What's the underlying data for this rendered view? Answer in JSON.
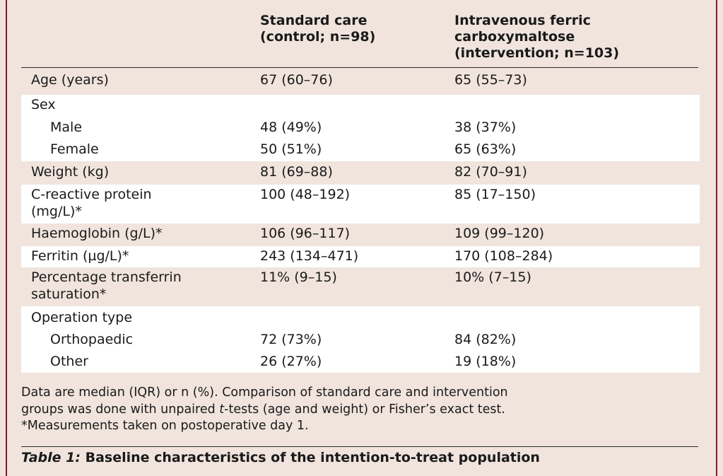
{
  "table": {
    "header": {
      "col1": [
        "Standard care",
        "(control; n=98)"
      ],
      "col2": [
        "Intravenous ferric",
        "carboxymaltose",
        "(intervention; n=103)"
      ]
    },
    "rows": {
      "age": {
        "label": "Age (years)",
        "control": "67 (60–76)",
        "intervention": "65 (55–73)"
      },
      "sex": {
        "label": "Sex"
      },
      "male": {
        "label": "Male",
        "control": "48 (49%)",
        "intervention": "38 (37%)"
      },
      "female": {
        "label": "Female",
        "control": "50 (51%)",
        "intervention": "65 (63%)"
      },
      "weight": {
        "label": "Weight (kg)",
        "control": "81 (69–88)",
        "intervention": "82 (70–91)"
      },
      "crp": {
        "label1": "C-reactive protein",
        "label2": "(mg/L)*",
        "control": "100 (48–192)",
        "intervention": "85 (17–150)"
      },
      "hb": {
        "label": "Haemoglobin (g/L)*",
        "control": "106 (96–117)",
        "intervention": "109 (99–120)"
      },
      "ferritin": {
        "label": "Ferritin (µg/L)*",
        "control": "243 (134–471)",
        "intervention": "170 (108–284)"
      },
      "tsat": {
        "label1": "Percentage transferrin",
        "label2": "saturation*",
        "control": "11% (9–15)",
        "intervention": "10% (7–15)"
      },
      "optype": {
        "label": "Operation type"
      },
      "ortho": {
        "label": "Orthopaedic",
        "control": "72 (73%)",
        "intervention": "84 (82%)"
      },
      "other": {
        "label": "Other",
        "control": "26 (27%)",
        "intervention": "19 (18%)"
      }
    }
  },
  "footnote": {
    "line1": "Data are median (IQR) or n (%). Comparison of standard care and intervention",
    "line2_pre": "groups was done with unpaired ",
    "line2_t": "t",
    "line2_post": "-tests (age and weight) or Fisher’s exact test.",
    "line3": "*Measurements taken on postoperative day 1."
  },
  "caption": {
    "label": "Table 1:",
    "text": " Baseline characteristics of the intention-to-treat population"
  }
}
